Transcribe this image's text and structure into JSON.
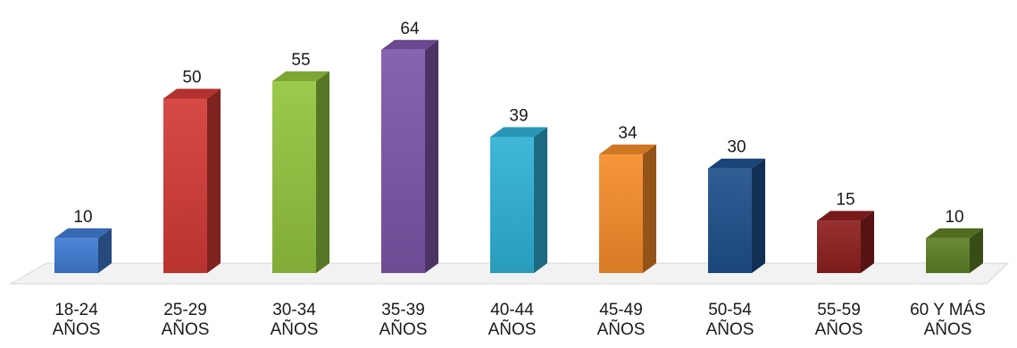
{
  "chart_data": {
    "type": "bar",
    "style": "3d-column",
    "categories": [
      "18-24\nAÑOS",
      "25-29\nAÑOS",
      "30-34\nAÑOS",
      "35-39\nAÑOS",
      "40-44\nAÑOS",
      "45-49\nAÑOS",
      "50-54\nAÑOS",
      "55-59\nAÑOS",
      "60 Y MÁS\nAÑOS"
    ],
    "values": [
      10,
      50,
      55,
      64,
      39,
      34,
      30,
      15,
      10
    ],
    "colors": [
      "#3f7bd2",
      "#d23a36",
      "#92c43e",
      "#7e55a8",
      "#2fb1d6",
      "#f68c2a",
      "#1f4f8c",
      "#8e1f1f",
      "#5e7f26"
    ],
    "ylim": [
      0,
      70
    ],
    "grid": false,
    "legend": "none"
  }
}
